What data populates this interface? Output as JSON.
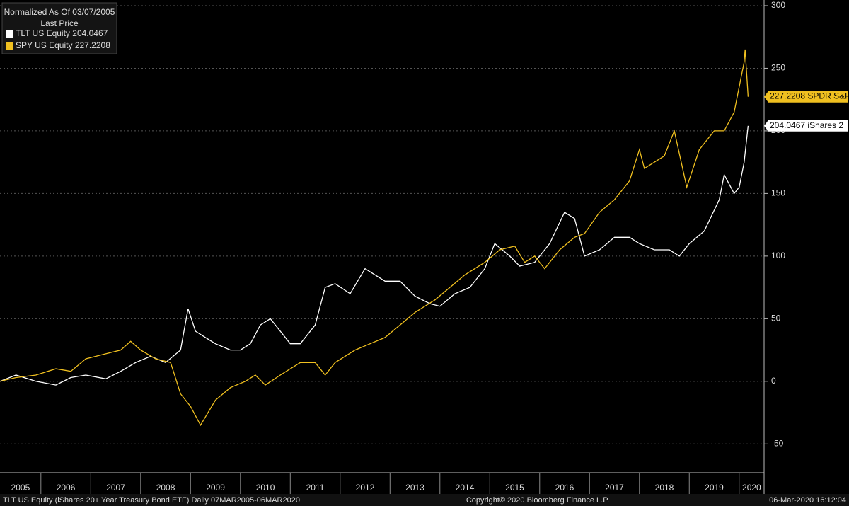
{
  "chart_data": {
    "type": "line",
    "legend_title": "Normalized As Of 03/07/2005",
    "legend_subtitle": "Last Price",
    "footer_left": "TLT US Equity (iShares 20+ Year Treasury Bond ETF)  Daily 07MAR2005-06MAR2020",
    "footer_center": "Copyright© 2020 Bloomberg Finance L.P.",
    "footer_right": "06-Mar-2020 16:12:04",
    "year_labels": [
      "2005",
      "2006",
      "2007",
      "2008",
      "2009",
      "2010",
      "2011",
      "2012",
      "2013",
      "2014",
      "2015",
      "2016",
      "2017",
      "2018",
      "2019",
      "2020"
    ],
    "xlim": [
      2005.18,
      2020.5
    ],
    "xticks": [
      2006,
      2007,
      2008,
      2009,
      2010,
      2011,
      2012,
      2013,
      2014,
      2015,
      2016,
      2017,
      2018,
      2019,
      2020
    ],
    "ylim": [
      -73,
      304.5
    ],
    "yticks": [
      -50,
      0,
      50,
      100,
      150,
      200,
      250,
      300
    ],
    "grid": true,
    "legend_position": "upper left",
    "series": [
      {
        "name": "TLT US Equity",
        "tag": "iShares 2",
        "color": "#ffffff",
        "x": [
          2005.18,
          2005.5,
          2005.9,
          2006.3,
          2006.6,
          2006.9,
          2007.3,
          2007.6,
          2007.9,
          2008.2,
          2008.5,
          2008.8,
          2008.95,
          2009.1,
          2009.3,
          2009.5,
          2009.8,
          2010.0,
          2010.2,
          2010.4,
          2010.6,
          2010.8,
          2011.0,
          2011.2,
          2011.5,
          2011.7,
          2011.9,
          2012.2,
          2012.5,
          2012.7,
          2012.9,
          2013.2,
          2013.5,
          2013.8,
          2014.0,
          2014.3,
          2014.6,
          2014.9,
          2015.1,
          2015.4,
          2015.6,
          2015.9,
          2016.2,
          2016.5,
          2016.7,
          2016.9,
          2017.2,
          2017.5,
          2017.8,
          2018.0,
          2018.3,
          2018.6,
          2018.8,
          2019.0,
          2019.3,
          2019.6,
          2019.7,
          2019.9,
          2020.0,
          2020.1,
          2020.18
        ],
        "values": [
          0,
          5,
          0,
          -3,
          3,
          5,
          2,
          8,
          15,
          20,
          15,
          25,
          58,
          40,
          35,
          30,
          25,
          25,
          30,
          45,
          50,
          40,
          30,
          30,
          45,
          75,
          78,
          70,
          90,
          85,
          80,
          80,
          68,
          62,
          60,
          70,
          75,
          90,
          110,
          100,
          92,
          95,
          110,
          135,
          130,
          100,
          105,
          115,
          115,
          110,
          105,
          105,
          100,
          110,
          120,
          145,
          165,
          150,
          155,
          175,
          204.0467
        ]
      },
      {
        "name": "SPY US Equity",
        "tag": "SPDR S&P",
        "color": "#f0c020",
        "x": [
          2005.18,
          2005.5,
          2005.9,
          2006.3,
          2006.6,
          2006.9,
          2007.3,
          2007.6,
          2007.8,
          2008.0,
          2008.3,
          2008.6,
          2008.8,
          2009.0,
          2009.2,
          2009.5,
          2009.8,
          2010.1,
          2010.3,
          2010.5,
          2010.8,
          2011.2,
          2011.5,
          2011.7,
          2011.9,
          2012.3,
          2012.6,
          2012.9,
          2013.2,
          2013.5,
          2013.9,
          2014.2,
          2014.5,
          2014.9,
          2015.2,
          2015.5,
          2015.7,
          2015.9,
          2016.1,
          2016.4,
          2016.7,
          2016.9,
          2017.2,
          2017.5,
          2017.8,
          2018.0,
          2018.1,
          2018.5,
          2018.7,
          2018.95,
          2019.2,
          2019.5,
          2019.7,
          2019.9,
          2020.1,
          2020.12,
          2020.18
        ],
        "values": [
          0,
          3,
          5,
          10,
          8,
          18,
          22,
          25,
          32,
          25,
          18,
          15,
          -10,
          -20,
          -35,
          -15,
          -5,
          0,
          5,
          -3,
          5,
          15,
          15,
          5,
          15,
          25,
          30,
          35,
          45,
          55,
          65,
          75,
          85,
          95,
          105,
          108,
          95,
          100,
          90,
          105,
          115,
          118,
          135,
          145,
          160,
          185,
          170,
          180,
          200,
          155,
          185,
          200,
          200,
          215,
          255,
          265,
          227.2208
        ]
      }
    ]
  }
}
